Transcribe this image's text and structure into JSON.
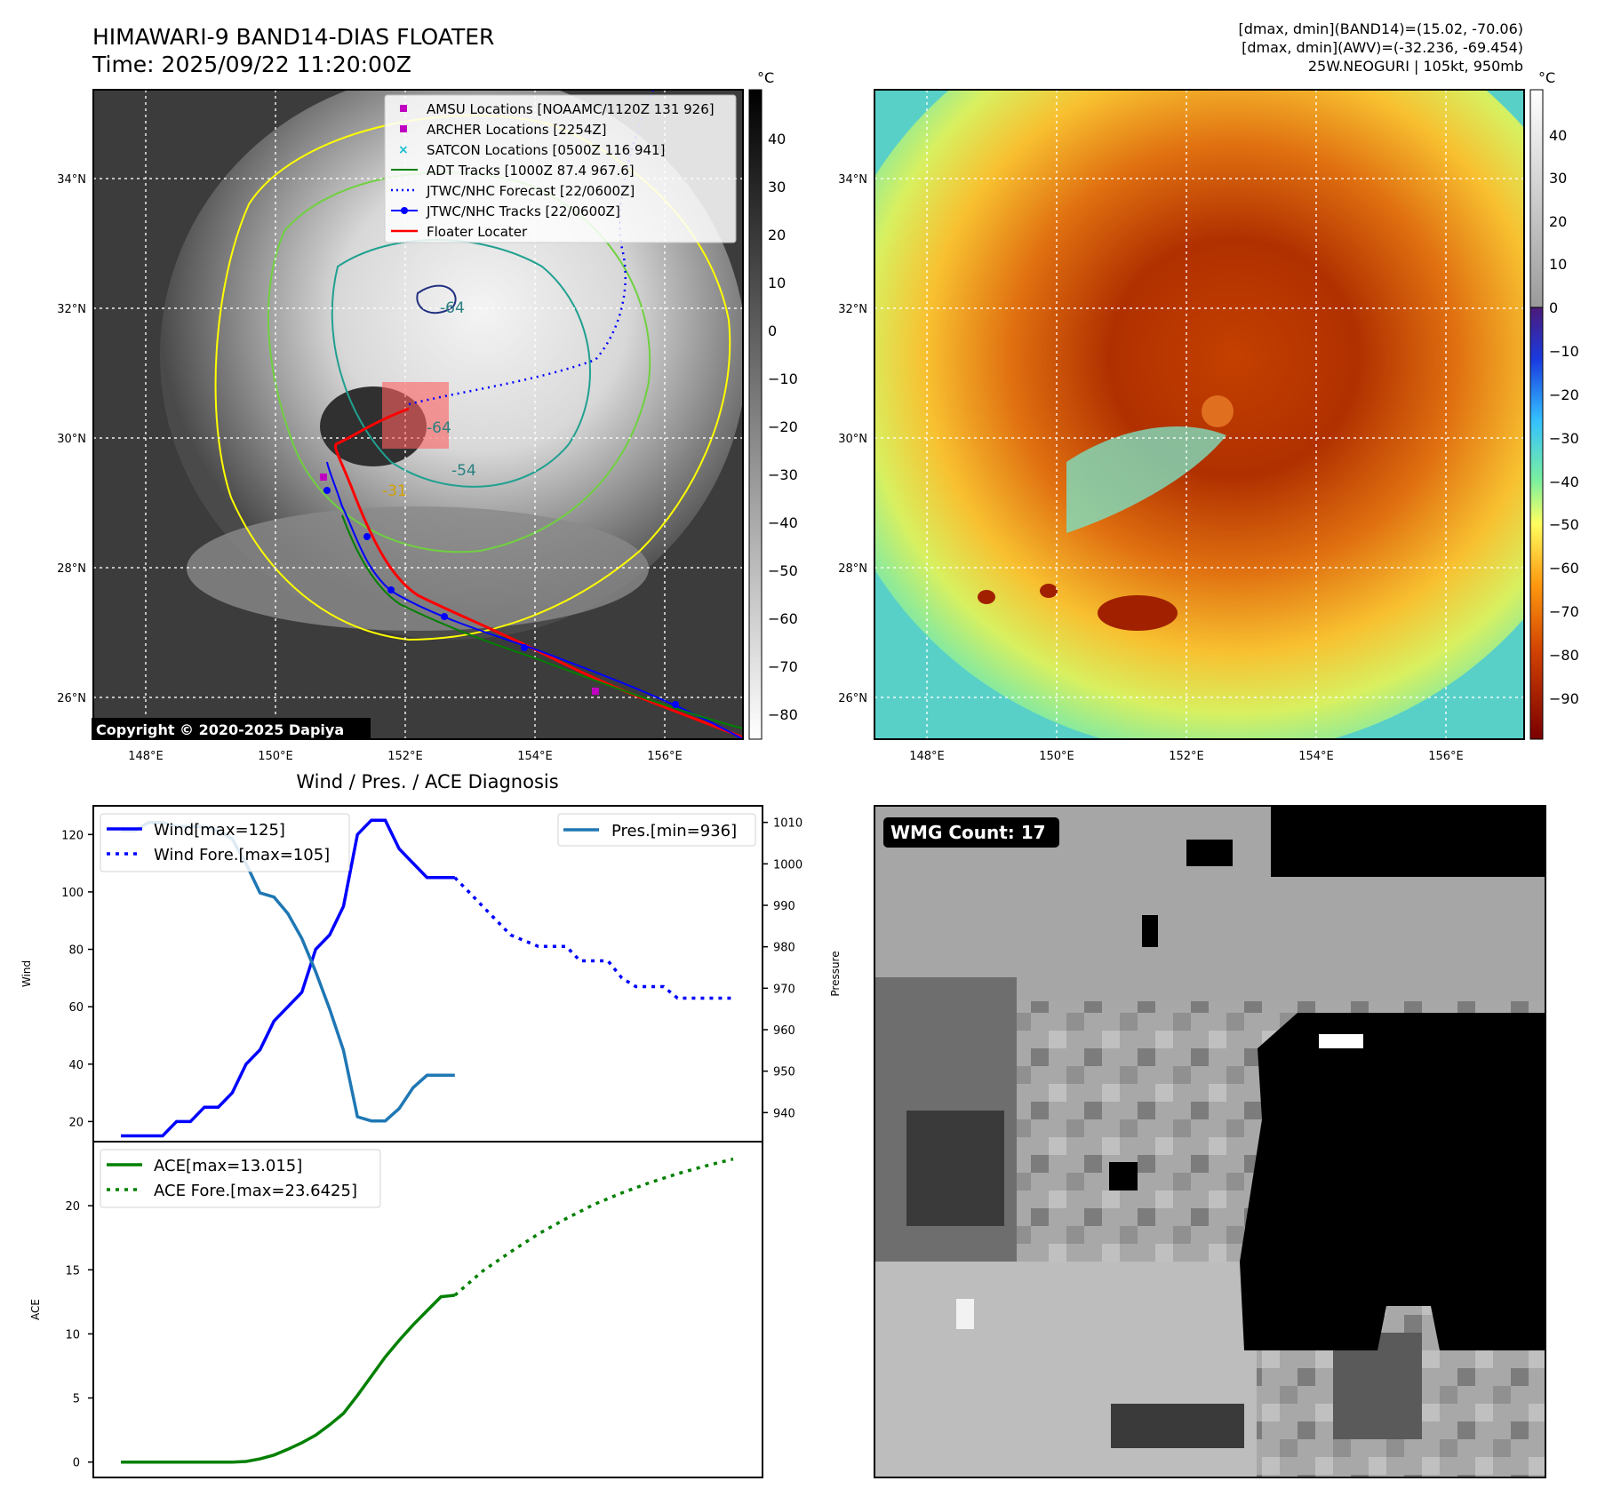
{
  "header": {
    "title": "HIMAWARI-9 BAND14-DIAS FLOATER",
    "time": "Time: 2025/09/22 11:20:00Z",
    "stats_line1": "[dmax, dmin](BAND14)=(15.02, -70.06)",
    "stats_line2": "[dmax, dmin](AWV)=(-32.236, -69.454)",
    "storm_line": "25W.NEOGURI | 105kt, 950mb"
  },
  "map_ir": {
    "unit": "°C",
    "lon_ticks": [
      "148°E",
      "150°E",
      "152°E",
      "154°E",
      "156°E"
    ],
    "lat_ticks": [
      "34°N",
      "32°N",
      "30°N",
      "28°N",
      "26°N"
    ],
    "colorbar_ticks": [
      "40",
      "30",
      "20",
      "10",
      "0",
      "−10",
      "−20",
      "−30",
      "−40",
      "−50",
      "−60",
      "−70",
      "−80"
    ],
    "contour_labels": [
      "-64",
      "-64",
      "-54",
      "-31"
    ],
    "copyright": "Copyright © 2020-2025 Dapiya",
    "legend": [
      {
        "label": "AMSU Locations [NOAAMC/1120Z 131 926]",
        "color": "#c000c0",
        "marker": "square"
      },
      {
        "label": "ARCHER Locations [2254Z]",
        "color": "#c000c0",
        "marker": "square"
      },
      {
        "label": "SATCON Locations [0500Z 116 941]",
        "color": "#17becf",
        "marker": "x"
      },
      {
        "label": "ADT Tracks [1000Z 87.4 967.6]",
        "color": "#008000",
        "marker": "line"
      },
      {
        "label": "JTWC/NHC Forecast [22/0600Z]",
        "color": "#0000ff",
        "marker": "dotted"
      },
      {
        "label": "JTWC/NHC Tracks [22/0600Z]",
        "color": "#0000ff",
        "marker": "line-dot"
      },
      {
        "label": "Floater Locater",
        "color": "#ff0000",
        "marker": "line"
      }
    ]
  },
  "map_wv": {
    "unit": "°C",
    "lon_ticks": [
      "148°E",
      "150°E",
      "152°E",
      "154°E",
      "156°E"
    ],
    "lat_ticks": [
      "34°N",
      "32°N",
      "30°N",
      "28°N",
      "26°N"
    ],
    "colorbar_ticks": [
      "40",
      "30",
      "20",
      "10",
      "0",
      "−10",
      "−20",
      "−30",
      "−40",
      "−50",
      "−60",
      "−70",
      "−80",
      "−90"
    ]
  },
  "wmg": {
    "count_label": "WMG Count: 17"
  },
  "colors": {
    "wind": "#0000ff",
    "pressure": "#1f77b4",
    "ace": "#008000",
    "track_red": "#ff0000",
    "contour_yellow": "#ffff00",
    "contour_teal": "#20a090"
  },
  "chart_data": [
    {
      "type": "line",
      "title": "Wind / Pres. / ACE Diagnosis",
      "ylabel": "Wind",
      "y2label": "Pressure",
      "ylim": [
        13,
        130
      ],
      "y2lim": [
        933,
        1014
      ],
      "yticks": [
        20,
        40,
        60,
        80,
        100,
        120
      ],
      "y2ticks": [
        940,
        950,
        960,
        970,
        980,
        990,
        1000,
        1010
      ],
      "x": [
        0,
        1,
        2,
        3,
        4,
        5,
        6,
        7,
        8,
        9,
        10,
        11,
        12,
        13,
        14,
        15,
        16,
        17,
        18,
        19,
        20,
        21,
        22,
        23,
        24,
        25,
        26,
        27,
        28,
        29,
        30,
        31,
        32,
        33,
        34,
        35,
        36,
        37,
        38,
        39,
        40,
        41,
        42,
        43,
        44
      ],
      "series": [
        {
          "name": "Wind[max=125]",
          "axis": "left",
          "style": "solid",
          "color": "#0000ff",
          "x": [
            0,
            1,
            2,
            3,
            4,
            5,
            6,
            7,
            8,
            9,
            10,
            11,
            12,
            13,
            14,
            15,
            16,
            17,
            18,
            19,
            20,
            21,
            22,
            23,
            24
          ],
          "values": [
            15,
            15,
            15,
            15,
            20,
            20,
            25,
            25,
            30,
            40,
            45,
            55,
            60,
            65,
            80,
            85,
            95,
            120,
            125,
            125,
            115,
            110,
            105,
            105,
            105
          ]
        },
        {
          "name": "Wind Fore.[max=105]",
          "axis": "left",
          "style": "dotted",
          "color": "#0000ff",
          "x": [
            24,
            25,
            26,
            27,
            28,
            29,
            30,
            31,
            32,
            33,
            34,
            35,
            36,
            37,
            38,
            39,
            40,
            41,
            42,
            43,
            44
          ],
          "values": [
            105,
            100,
            95,
            90,
            85,
            83,
            81,
            81,
            81,
            76,
            76,
            76,
            70,
            67,
            67,
            67,
            63,
            63,
            63,
            63,
            63
          ]
        },
        {
          "name": "Pres.[min=936]",
          "axis": "right",
          "style": "solid",
          "color": "#1f77b4",
          "x": [
            0,
            1,
            2,
            3,
            4,
            5,
            6,
            7,
            8,
            9,
            10,
            11,
            12,
            13,
            14,
            15,
            16,
            17,
            18,
            19,
            20,
            21,
            22,
            23,
            24
          ],
          "values": [
            1008,
            1008,
            1010,
            1010,
            1009,
            1009,
            1009,
            1008,
            1006,
            1000,
            993,
            992,
            988,
            982,
            974,
            965,
            955,
            939,
            938,
            938,
            941,
            946,
            949,
            949,
            949
          ]
        }
      ]
    },
    {
      "type": "line",
      "ylabel": "ACE",
      "ylim": [
        -1.2,
        25
      ],
      "yticks": [
        0,
        5,
        10,
        15,
        20
      ],
      "series": [
        {
          "name": "ACE[max=13.015]",
          "style": "solid",
          "color": "#008000",
          "x": [
            0,
            1,
            2,
            3,
            4,
            5,
            6,
            7,
            8,
            9,
            10,
            11,
            12,
            13,
            14,
            15,
            16,
            17,
            18,
            19,
            20,
            21,
            22,
            23,
            24
          ],
          "values": [
            0,
            0,
            0,
            0,
            0,
            0,
            0,
            0,
            0,
            0.05,
            0.25,
            0.55,
            1.0,
            1.5,
            2.1,
            2.9,
            3.8,
            5.2,
            6.7,
            8.2,
            9.5,
            10.7,
            11.8,
            12.9,
            13.015
          ]
        },
        {
          "name": "ACE Fore.[max=23.6425]",
          "style": "dotted",
          "color": "#008000",
          "x": [
            24,
            26,
            28,
            30,
            32,
            34,
            36,
            38,
            40,
            42,
            44
          ],
          "values": [
            13.015,
            14.9,
            16.4,
            17.8,
            19.0,
            20.1,
            21.0,
            21.8,
            22.5,
            23.1,
            23.6425
          ]
        }
      ]
    }
  ]
}
